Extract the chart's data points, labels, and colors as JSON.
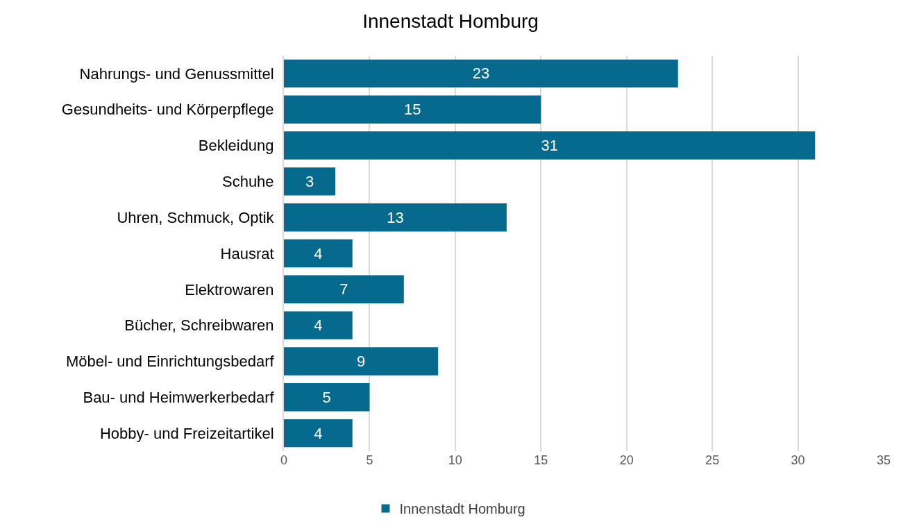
{
  "chart_data": {
    "type": "bar",
    "title": "Innenstadt Homburg",
    "orientation": "horizontal",
    "categories": [
      "Nahrungs- und Genussmittel",
      "Gesundheits- und Körperpflege",
      "Bekleidung",
      "Schuhe",
      "Uhren, Schmuck, Optik",
      "Hausrat",
      "Elektrowaren",
      "Bücher, Schreibwaren",
      "Möbel- und Einrichtungsbedarf",
      "Bau- und Heimwerkerbedarf",
      "Hobby- und Freizeitartikel"
    ],
    "series": [
      {
        "name": "Innenstadt Homburg",
        "color": "#066a8f",
        "values": [
          23,
          15,
          31,
          3,
          13,
          4,
          7,
          4,
          9,
          5,
          4
        ]
      }
    ],
    "xlim": [
      0,
      35
    ],
    "xticks": [
      0,
      5,
      10,
      15,
      20,
      25,
      30,
      35
    ],
    "grid": "x",
    "legend": "bottom",
    "data_labels": true
  }
}
